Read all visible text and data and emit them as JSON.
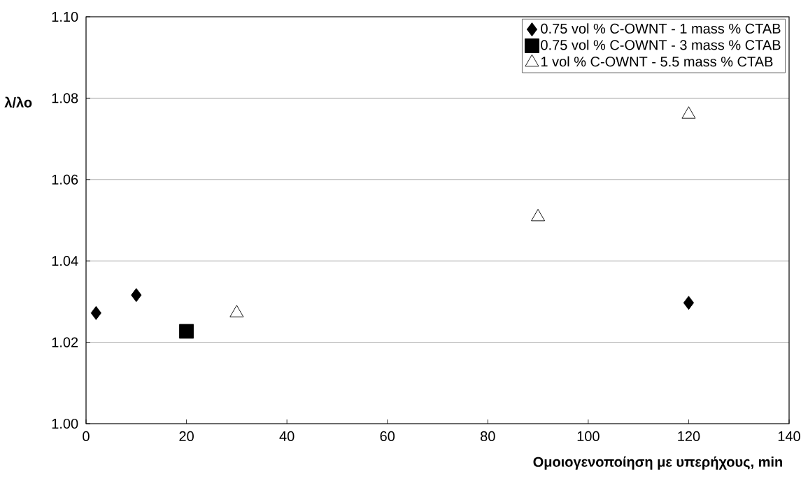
{
  "chart_data": {
    "type": "scatter",
    "xlabel": "Ομοιογενοποίηση με υπερήχους, min",
    "ylabel": "λ/λο",
    "xlim": [
      0,
      140
    ],
    "xticks": [
      0,
      20,
      40,
      60,
      80,
      100,
      120,
      140
    ],
    "ylim": [
      1.0,
      1.1
    ],
    "yticks": [
      {
        "value": 1.0,
        "label": "1.00"
      },
      {
        "value": 1.02,
        "label": "1.02"
      },
      {
        "value": 1.04,
        "label": "1.04"
      },
      {
        "value": 1.06,
        "label": "1.06"
      },
      {
        "value": 1.08,
        "label": "1.08"
      },
      {
        "value": 1.1,
        "label": "1.10"
      }
    ],
    "grid": "y",
    "legend": "top right",
    "series": [
      {
        "name": "0.75 vol % C-OWNT - 1 mass % CTAB",
        "color": "#000000",
        "marker": "diamond",
        "x": [
          2,
          10,
          120
        ],
        "values": [
          1.0272,
          1.0316,
          1.0297
        ]
      },
      {
        "name": "0.75 vol % C-OWNT - 3 mass % CTAB",
        "color": "#000000",
        "marker": "square",
        "x": [
          20
        ],
        "values": [
          1.0227
        ]
      },
      {
        "name": "1 vol % C-OWNT - 5.5 mass % CTAB",
        "color": "#000000",
        "marker": "triangle",
        "x": [
          30,
          90,
          120
        ],
        "values": [
          1.0272,
          1.0508,
          1.076
        ]
      }
    ]
  }
}
